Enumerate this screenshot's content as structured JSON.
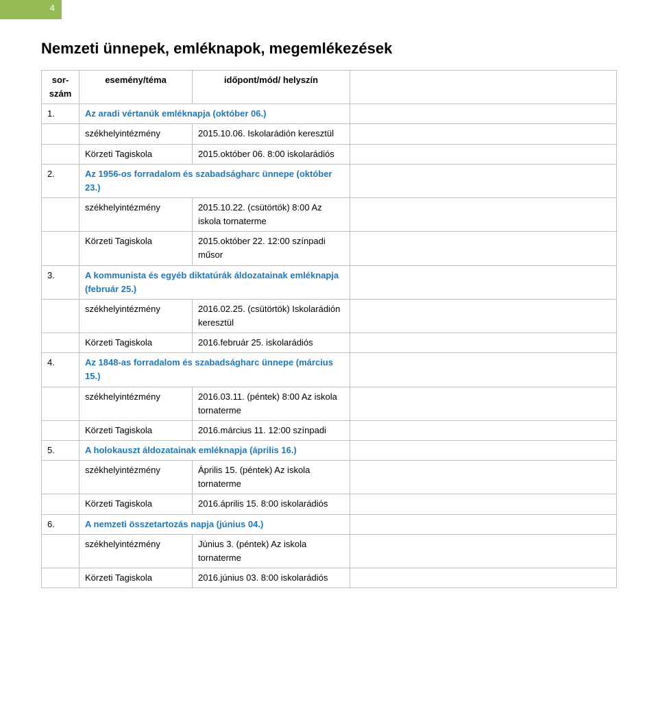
{
  "page_number": "4",
  "heading": "Nemzeti ünnepek, emléknapok, megemlékezések",
  "header": {
    "c1": "sor-szám",
    "c2": "esemény/téma",
    "c3": "időpont/mód/ helyszín"
  },
  "label_szek": "székhelyintézmény",
  "label_korz": "Körzeti Tagiskola",
  "events": [
    {
      "num": "1.",
      "title": "Az aradi vértanúk emléknapja (október 06.)",
      "szek": "2015.10.06. Iskolarádión keresztül",
      "korz": "2015.október 06. 8:00 iskolarádiós"
    },
    {
      "num": "2.",
      "title": "Az 1956-os forradalom és szabadságharc ünnepe (október 23.)",
      "szek": "2015.10.22. (csütörtök) 8:00 Az iskola tornaterme",
      "korz": "2015.október 22. 12:00 színpadi műsor"
    },
    {
      "num": "3.",
      "title": "A kommunista és egyéb diktatúrák áldozatainak emléknapja (február 25.)",
      "szek": "2016.02.25. (csütörtök) Iskolarádión keresztül",
      "korz": "2016.február 25. iskolarádiós"
    },
    {
      "num": "4.",
      "title": "Az 1848-as forradalom és szabadságharc ünnepe (március 15.)",
      "szek": "2016.03.11. (péntek) 8:00 Az iskola tornaterme",
      "korz": "2016.március 11. 12:00 színpadi"
    },
    {
      "num": "5.",
      "title": "A holokauszt áldozatainak emléknapja (április 16.)",
      "szek": "Április 15. (péntek) Az iskola tornaterme",
      "korz": "2016.április 15. 8:00 iskolarádiós"
    },
    {
      "num": "6.",
      "title": "A nemzeti összetartozás napja (június 04.)",
      "szek": "Június 3. (péntek) Az iskola tornaterme",
      "korz": "2016.június 03. 8:00 iskolarádiós"
    }
  ],
  "colors": {
    "accent": "#93ba55",
    "link_blue": "#1f77b4",
    "border": "#bfbfbf",
    "text": "#000000",
    "bg": "#ffffff"
  }
}
